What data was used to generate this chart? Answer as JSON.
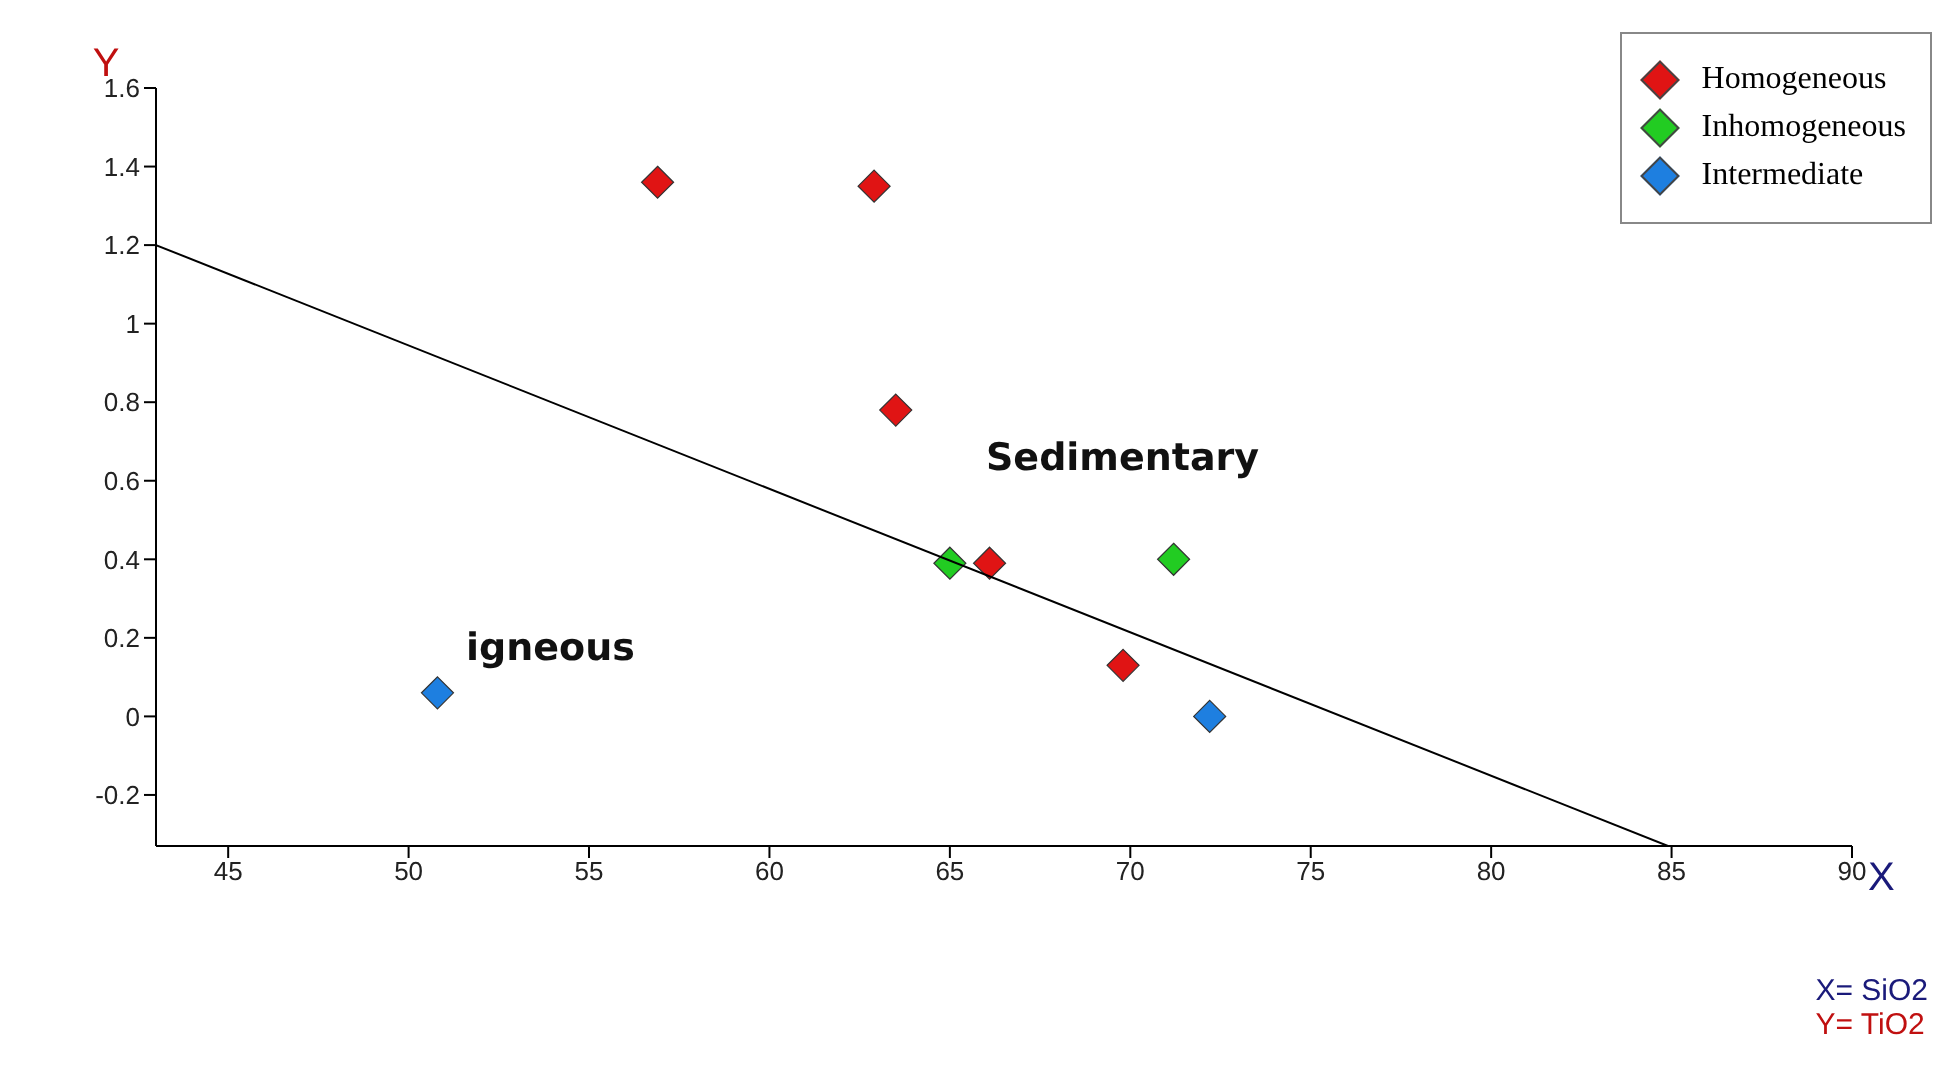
{
  "chart_data": {
    "type": "scatter",
    "xlabel": "X",
    "ylabel": "Y",
    "xlim": [
      43,
      90
    ],
    "xticks": [
      45,
      50,
      55,
      60,
      65,
      70,
      75,
      80,
      85,
      90
    ],
    "ylim": [
      -0.33,
      1.6
    ],
    "yticks": [
      -0.2,
      0,
      0.2,
      0.4,
      0.6,
      0.8,
      1,
      1.2,
      1.4,
      1.6
    ],
    "marker": "diamond",
    "legend": "top right",
    "series": [
      {
        "name": "Homogeneous",
        "color": "#e01414",
        "x": [
          56.9,
          62.9,
          63.5,
          66.1,
          69.8
        ],
        "values": [
          1.36,
          1.35,
          0.78,
          0.39,
          0.13
        ]
      },
      {
        "name": "Inhomogeneous",
        "color": "#22cc22",
        "x": [
          65.0,
          71.2
        ],
        "values": [
          0.39,
          0.4
        ]
      },
      {
        "name": "Intermediate",
        "color": "#1e7fe0",
        "x": [
          50.8,
          72.2
        ],
        "values": [
          0.06,
          0.0
        ]
      },
      {
        "type": "line",
        "color": "#000000",
        "marker": "none",
        "x": [
          43,
          84.9
        ],
        "values": [
          1.2,
          -0.33
        ]
      }
    ],
    "annotations": [
      "Sedimentary",
      "igneous",
      "X= SiO2",
      "Y= TiO2"
    ]
  }
}
